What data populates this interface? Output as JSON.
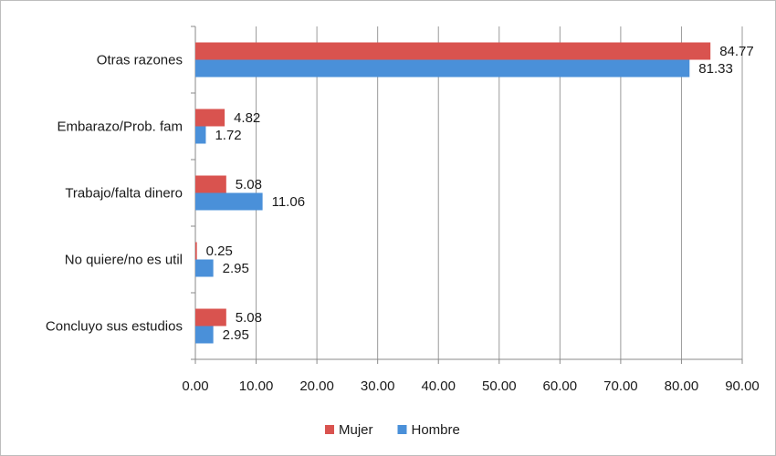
{
  "chart_data": {
    "type": "bar",
    "orientation": "horizontal",
    "categories": [
      "Otras razones",
      "Embarazo/Prob. fam",
      "Trabajo/falta dinero",
      "No quiere/no es util",
      "Concluyo sus estudios"
    ],
    "series": [
      {
        "name": "Mujer",
        "color": "#d9534f",
        "values": [
          84.77,
          4.82,
          5.08,
          0.25,
          5.08
        ],
        "labels": [
          "84.77",
          "4.82",
          "5.08",
          "0.25",
          "5.08"
        ]
      },
      {
        "name": "Hombre",
        "color": "#4a90d9",
        "values": [
          81.33,
          1.72,
          11.06,
          2.95,
          2.95
        ],
        "labels": [
          "81.33",
          "1.72",
          "11.06",
          "2.95",
          "2.95"
        ]
      }
    ],
    "xlim": [
      0,
      90
    ],
    "xticks": [
      "0.00",
      "10.00",
      "20.00",
      "30.00",
      "40.00",
      "50.00",
      "60.00",
      "70.00",
      "80.00",
      "90.00"
    ],
    "grid": true,
    "legend": "bottom",
    "title": "",
    "xlabel": "",
    "ylabel": ""
  }
}
